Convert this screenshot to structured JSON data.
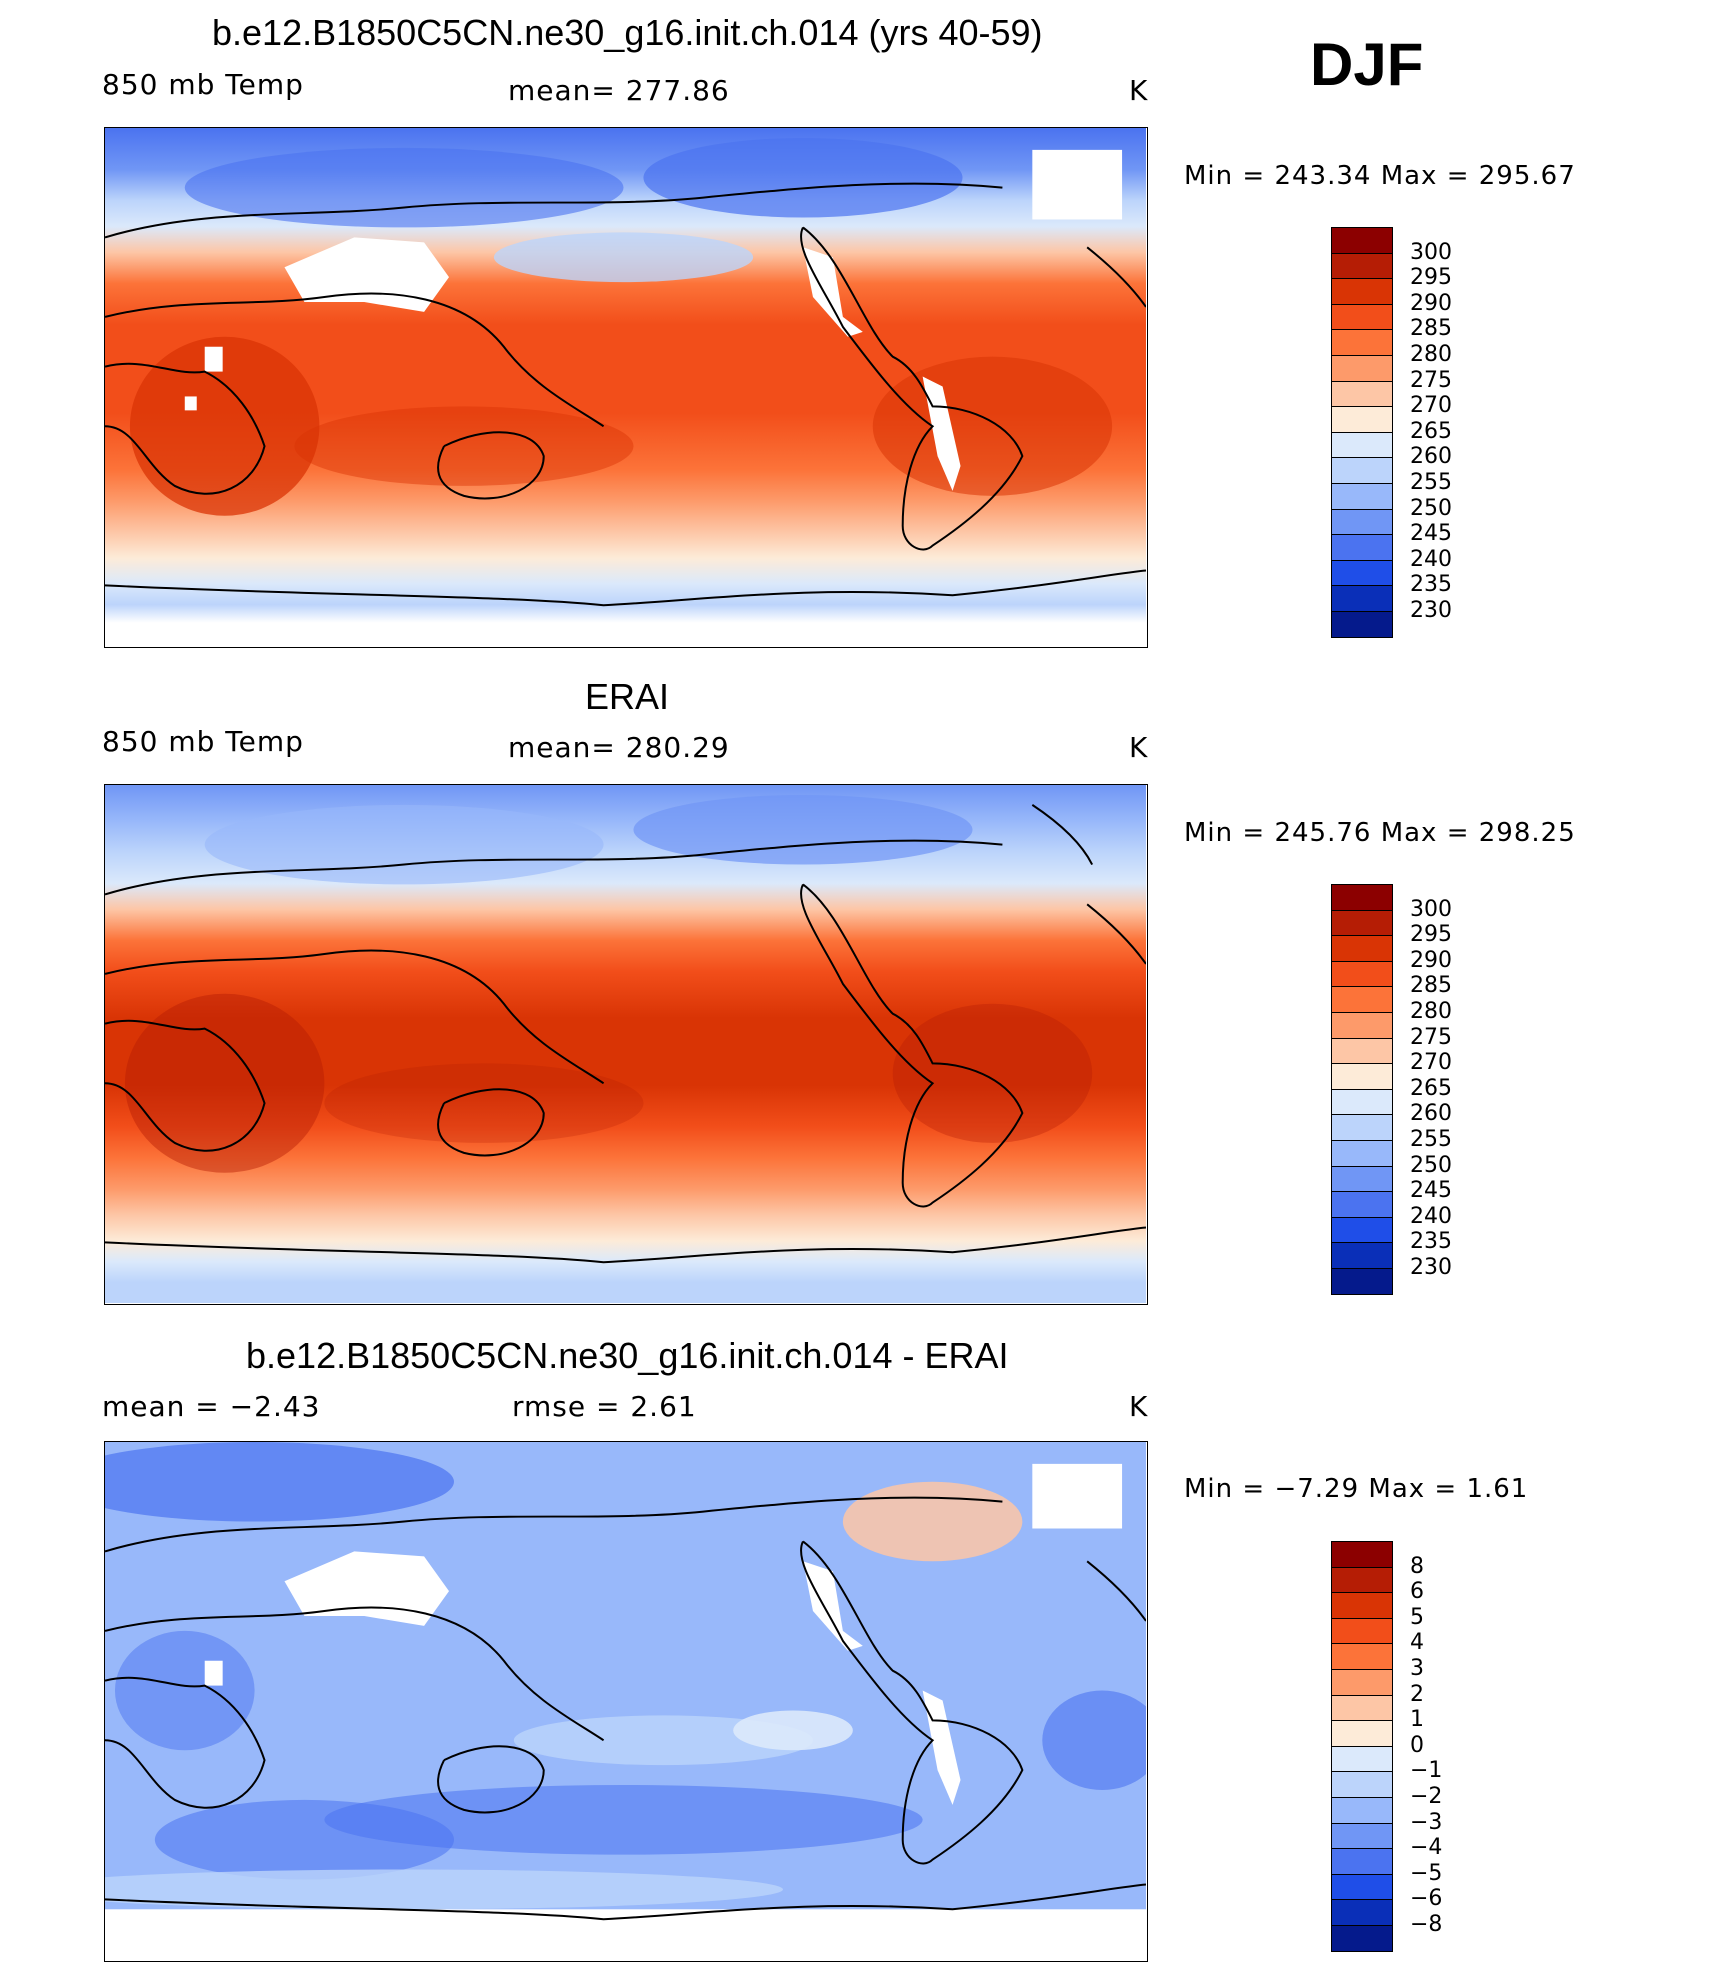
{
  "season": "DJF",
  "panels": [
    {
      "title": "b.e12.B1850C5CN.ne30_g16.init.ch.014 (yrs 40-59)",
      "left_label": "850 mb Temp",
      "center_label": "mean=  277.86",
      "units": "K",
      "minmax": "Min  =  243.34  Max  =  295.67",
      "colorbar": {
        "labels": [
          "300",
          "295",
          "290",
          "285",
          "280",
          "275",
          "270",
          "265",
          "260",
          "255",
          "250",
          "245",
          "240",
          "235",
          "230"
        ],
        "colors": [
          "#8c0000",
          "#b51d05",
          "#d93405",
          "#f24e1a",
          "#fc7339",
          "#fd9a6a",
          "#fdc6a6",
          "#fdebd8",
          "#dbe9fb",
          "#bcd4fb",
          "#98b8fa",
          "#7096f5",
          "#4b73f0",
          "#1f4ee8",
          "#0a2fb8",
          "#051a8c"
        ]
      },
      "map_fill": [
        {
          "from_color": "#fd9a6a"
        },
        {
          "to_color": "#d93405"
        }
      ]
    },
    {
      "title": "ERAI",
      "left_label": "850 mb Temp",
      "center_label": "mean=  280.29",
      "units": "K",
      "minmax": "Min  =  245.76  Max  =  298.25",
      "colorbar": {
        "labels": [
          "300",
          "295",
          "290",
          "285",
          "280",
          "275",
          "270",
          "265",
          "260",
          "255",
          "250",
          "245",
          "240",
          "235",
          "230"
        ],
        "colors": [
          "#8c0000",
          "#b51d05",
          "#d93405",
          "#f24e1a",
          "#fc7339",
          "#fd9a6a",
          "#fdc6a6",
          "#fdebd8",
          "#dbe9fb",
          "#bcd4fb",
          "#98b8fa",
          "#7096f5",
          "#4b73f0",
          "#1f4ee8",
          "#0a2fb8",
          "#051a8c"
        ]
      }
    },
    {
      "title": "b.e12.B1850C5CN.ne30_g16.init.ch.014 - ERAI",
      "left_label": "mean =    −2.43",
      "center_label": "rmse =     2.61",
      "units": "K",
      "minmax": "Min  =    −7.29  Max  =     1.61",
      "colorbar": {
        "labels": [
          "8",
          "6",
          "5",
          "4",
          "3",
          "2",
          "1",
          "0",
          "−1",
          "−2",
          "−3",
          "−4",
          "−5",
          "−6",
          "−8"
        ],
        "colors": [
          "#8c0000",
          "#b51d05",
          "#d93405",
          "#f24e1a",
          "#fc7339",
          "#fd9a6a",
          "#fdc6a6",
          "#fdebd8",
          "#dbe9fb",
          "#bcd4fb",
          "#98b8fa",
          "#7096f5",
          "#4b73f0",
          "#1f4ee8",
          "#0a2fb8",
          "#051a8c"
        ]
      }
    }
  ]
}
